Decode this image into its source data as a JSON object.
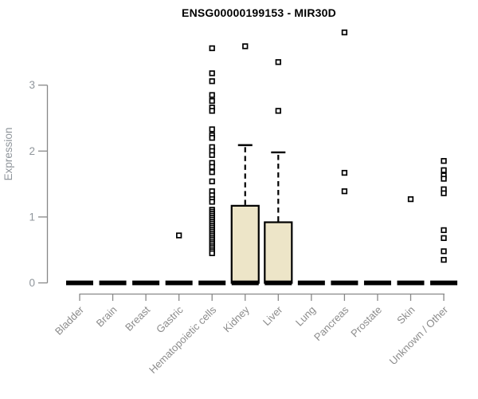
{
  "page": {
    "title": "ENSG00000199153 - MIR30D"
  },
  "colors": {
    "title": "#000000",
    "axis": "#888888",
    "tick_labels": "#8f959b",
    "category_labels": "#8c8c8c",
    "box_fill": "#ede5c8",
    "box_stroke": "#000000",
    "points": "#000000",
    "background": "#ffffff"
  },
  "chart_data": {
    "type": "boxplot",
    "title": "ENSG00000199153 - MIR30D",
    "xlabel": "",
    "ylabel": "Expression",
    "ylim": [
      0,
      3.9
    ],
    "yticks": [
      0,
      1,
      2,
      3
    ],
    "grid": false,
    "legend": false,
    "categories": [
      "Bladder",
      "Brain",
      "Breast",
      "Gastric",
      "Hematopoietic cells",
      "Kidney",
      "Liver",
      "Lung",
      "Pancreas",
      "Prostate",
      "Skin",
      "Unknown / Other"
    ],
    "series": [
      {
        "category": "Bladder",
        "q1": 0,
        "median": 0,
        "q3": 0,
        "whisker_low": 0,
        "whisker_high": 0,
        "outliers": []
      },
      {
        "category": "Brain",
        "q1": 0,
        "median": 0,
        "q3": 0,
        "whisker_low": 0,
        "whisker_high": 0,
        "outliers": []
      },
      {
        "category": "Breast",
        "q1": 0,
        "median": 0,
        "q3": 0,
        "whisker_low": 0,
        "whisker_high": 0,
        "outliers": []
      },
      {
        "category": "Gastric",
        "q1": 0,
        "median": 0,
        "q3": 0,
        "whisker_low": 0,
        "whisker_high": 0,
        "outliers": [
          0.72
        ]
      },
      {
        "category": "Hematopoietic cells",
        "q1": 0,
        "median": 0,
        "q3": 0,
        "whisker_low": 0,
        "whisker_high": 0,
        "outliers": [
          3.56,
          3.18,
          3.06,
          2.85,
          2.76,
          2.66,
          2.61,
          2.33,
          2.24,
          2.2,
          2.06,
          2.0,
          1.94,
          1.82,
          1.76,
          1.68,
          1.54,
          1.39,
          1.33,
          1.27,
          1.23,
          1.11,
          1.08,
          1.05,
          1.02,
          0.99,
          0.96,
          0.93,
          0.9,
          0.87,
          0.84,
          0.81,
          0.78,
          0.75,
          0.72,
          0.69,
          0.66,
          0.63,
          0.6,
          0.57,
          0.54,
          0.51,
          0.48,
          0.45
        ]
      },
      {
        "category": "Kidney",
        "q1": 0,
        "median": 0,
        "q3": 1.17,
        "whisker_low": 0,
        "whisker_high": 2.09,
        "outliers": [
          3.59
        ]
      },
      {
        "category": "Liver",
        "q1": 0,
        "median": 0,
        "q3": 0.92,
        "whisker_low": 0,
        "whisker_high": 1.98,
        "outliers": [
          3.35,
          2.61
        ]
      },
      {
        "category": "Lung",
        "q1": 0,
        "median": 0,
        "q3": 0,
        "whisker_low": 0,
        "whisker_high": 0,
        "outliers": []
      },
      {
        "category": "Pancreas",
        "q1": 0,
        "median": 0,
        "q3": 0,
        "whisker_low": 0,
        "whisker_high": 0,
        "outliers": [
          3.8,
          1.67,
          1.39
        ]
      },
      {
        "category": "Prostate",
        "q1": 0,
        "median": 0,
        "q3": 0,
        "whisker_low": 0,
        "whisker_high": 0,
        "outliers": []
      },
      {
        "category": "Skin",
        "q1": 0,
        "median": 0,
        "q3": 0,
        "whisker_low": 0,
        "whisker_high": 0,
        "outliers": [
          1.27
        ]
      },
      {
        "category": "Unknown / Other",
        "q1": 0,
        "median": 0,
        "q3": 0,
        "whisker_low": 0,
        "whisker_high": 0,
        "outliers": [
          1.85,
          1.71,
          1.63,
          1.58,
          1.42,
          1.36,
          0.8,
          0.68,
          0.48,
          0.35
        ]
      }
    ]
  }
}
